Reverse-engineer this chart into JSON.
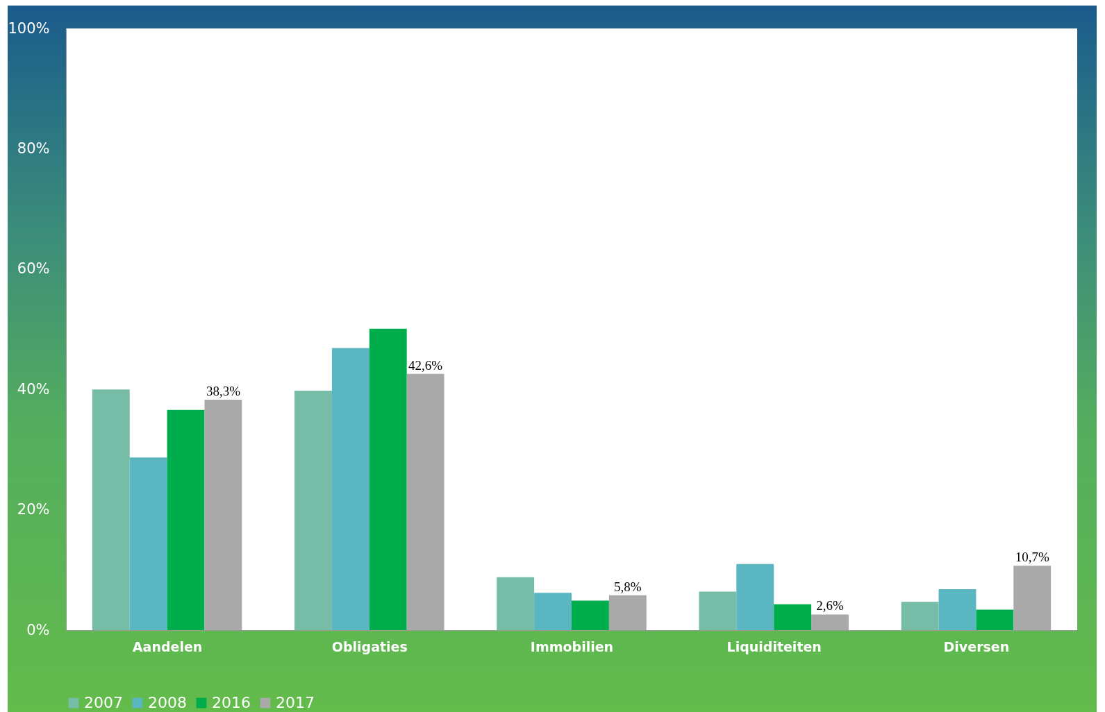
{
  "chart_data": {
    "type": "bar",
    "categories": [
      "Aandelen",
      "Obligaties",
      "Immobilien",
      "Liquiditeiten",
      "Diversen"
    ],
    "series": [
      {
        "name": "2007",
        "color": "#77bca6",
        "values": [
          40.0,
          39.8,
          8.8,
          6.4,
          4.7
        ]
      },
      {
        "name": "2008",
        "color": "#5ab6c1",
        "values": [
          28.7,
          46.9,
          6.2,
          11.0,
          6.8
        ]
      },
      {
        "name": "2016",
        "color": "#00ad4c",
        "values": [
          36.6,
          50.1,
          4.9,
          4.3,
          3.4
        ]
      },
      {
        "name": "2017",
        "color": "#a9a9a9",
        "values": [
          38.3,
          42.6,
          5.8,
          2.6,
          10.7
        ],
        "value_labels": [
          "38,3%",
          "42,6%",
          "5,8%",
          "2,6%",
          "10,7%"
        ]
      }
    ],
    "ylim": [
      0,
      100
    ],
    "yticks": [
      {
        "value": 0,
        "label": "0%"
      },
      {
        "value": 20,
        "label": "20%"
      },
      {
        "value": 40,
        "label": "40%"
      },
      {
        "value": 60,
        "label": "60%"
      },
      {
        "value": 80,
        "label": "80%"
      },
      {
        "value": 100,
        "label": "100%"
      }
    ],
    "grid": false,
    "legend": "bottom"
  }
}
